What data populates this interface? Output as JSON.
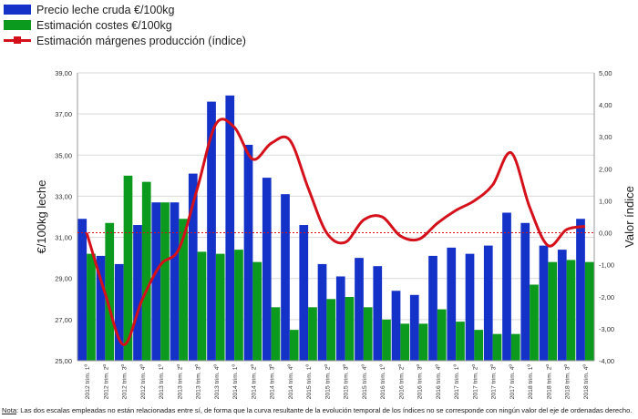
{
  "chart_data": {
    "type": "bar",
    "title": "",
    "categories": [
      "2012 trim. 1º",
      "2012 trim. 2º",
      "2012 trim. 3º",
      "2012 trim. 4º",
      "2013 trim. 1º",
      "2013 trim. 2º",
      "2013 trim. 3º",
      "2013 trim. 4º",
      "2014 trim. 1º",
      "2014 trim. 2º",
      "2014 trim. 3º",
      "2014 trim. 4º",
      "2015 trim. 1º",
      "2015 trim. 2º",
      "2015 trim. 3º",
      "2015 trim. 4º",
      "2016 trim. 1º",
      "2016 trim. 2º",
      "2016 trim. 3º",
      "2016 trim. 4º",
      "2017 trim. 1º",
      "2017 trim. 2º",
      "2017 trim. 3º",
      "2017 trim. 4º",
      "2018 trim. 1º",
      "2018 trim. 2º",
      "2018 trim. 3º",
      "2018 trim. 4º"
    ],
    "series": [
      {
        "name": "Precio leche cruda €/100kg",
        "type": "bar",
        "axis": "left",
        "color": "#1432c8",
        "values": [
          31.9,
          30.1,
          29.7,
          31.6,
          32.7,
          32.7,
          34.1,
          37.6,
          37.9,
          35.5,
          33.9,
          33.1,
          31.6,
          29.7,
          29.1,
          30.0,
          29.6,
          28.4,
          28.2,
          30.1,
          30.5,
          30.2,
          30.6,
          32.2,
          31.7,
          30.6,
          30.4,
          31.9
        ]
      },
      {
        "name": "Estimación costes €/100kg",
        "type": "bar",
        "axis": "left",
        "color": "#0c9a1e",
        "values": [
          30.2,
          31.7,
          34.0,
          33.7,
          32.7,
          31.9,
          30.3,
          30.2,
          30.4,
          29.8,
          27.6,
          26.5,
          27.6,
          28.0,
          28.1,
          27.6,
          27.0,
          26.8,
          26.8,
          27.5,
          26.9,
          26.5,
          26.3,
          26.3,
          28.7,
          29.8,
          29.9,
          29.8
        ]
      },
      {
        "name": "Estimación márgenes producción (índice)",
        "type": "line",
        "axis": "right",
        "color": "#d4111b",
        "values": [
          0.0,
          -1.9,
          -3.5,
          -2.1,
          -1.0,
          -0.5,
          1.4,
          3.4,
          3.3,
          2.3,
          2.8,
          2.9,
          1.4,
          0.0,
          -0.3,
          0.4,
          0.5,
          -0.1,
          -0.2,
          0.3,
          0.7,
          1.0,
          1.5,
          2.5,
          0.8,
          -0.4,
          0.1,
          0.2
        ]
      }
    ],
    "ylabel": "€/100kg leche",
    "ylabel_right": "Valor índice",
    "ylim": [
      25,
      39
    ],
    "ylim_right": [
      -4,
      5
    ],
    "yticks": [
      "25,00",
      "27,00",
      "29,00",
      "31,00",
      "33,00",
      "35,00",
      "37,00",
      "39,00"
    ],
    "yticks_right": [
      "-4,00",
      "-3,00",
      "-2,00",
      "-1,00",
      "0,00",
      "1,00",
      "2,00",
      "3,00",
      "4,00",
      "5,00"
    ],
    "reference_line_right": 0,
    "grid": true,
    "legend_position": "top-left"
  },
  "note": {
    "label": "Nota",
    "text": ": Las dos escalas empleadas no están relacionadas entre sí, de forma que la curva resultante de la evolución temporal de los índices no se corresponde con ningún valor del eje de ordenadas derecho."
  }
}
